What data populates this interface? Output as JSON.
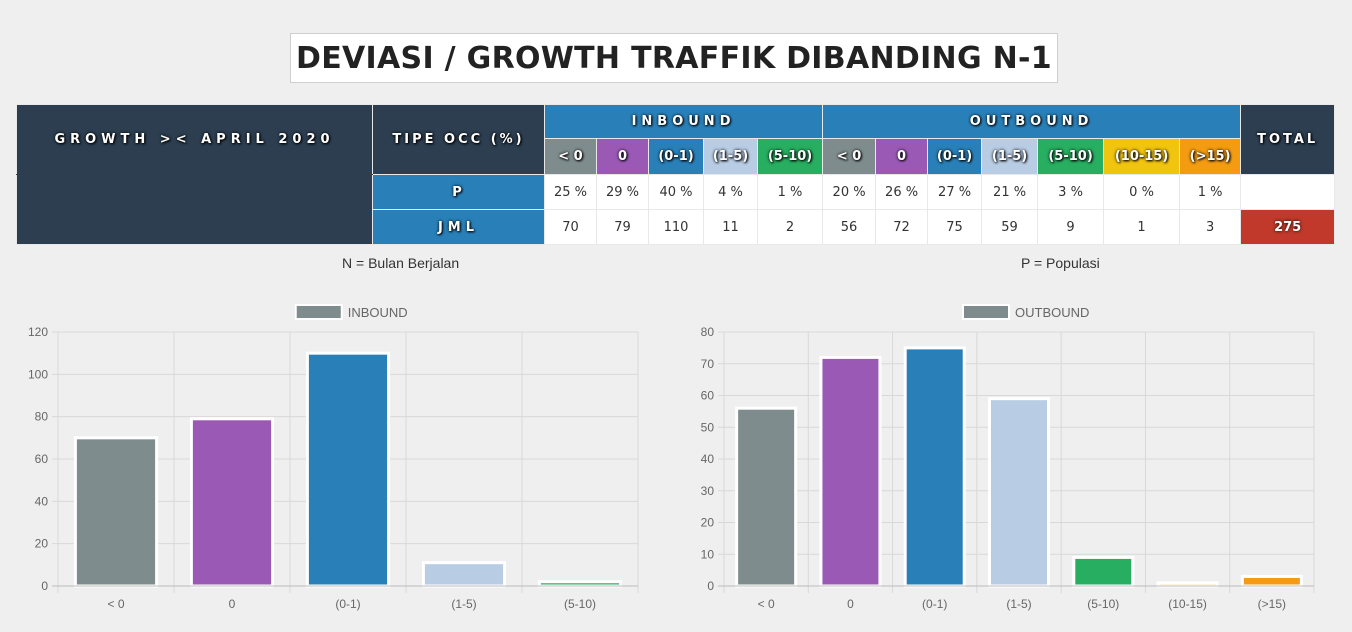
{
  "title": "DEVIASI / GROWTH TRAFFIK DIBANDING N-1",
  "table": {
    "growth_label": "GROWTH >< APRIL 2020",
    "tipe_label": "TIPE OCC (%)",
    "inbound_label": "INBOUND",
    "outbound_label": "OUTBOUND",
    "total_label": "TOTAL",
    "p_label": "P",
    "jml_label": "JML",
    "inbound_cats": [
      "< 0",
      "0",
      "(0-1)",
      "(1-5)",
      "(5-10)"
    ],
    "outbound_cats": [
      "< 0",
      "0",
      "(0-1)",
      "(1-5)",
      "(5-10)",
      "(10-15)",
      "(>15)"
    ],
    "inbound_p": [
      "25 %",
      "29 %",
      "40 %",
      "4 %",
      "1 %"
    ],
    "outbound_p": [
      "20 %",
      "26 %",
      "27 %",
      "21 %",
      "3 %",
      "0 %",
      "1 %"
    ],
    "inbound_jml": [
      "70",
      "79",
      "110",
      "11",
      "2"
    ],
    "outbound_jml": [
      "56",
      "72",
      "75",
      "59",
      "9",
      "1",
      "3"
    ],
    "total_value": "275"
  },
  "notes": {
    "left": "N = Bulan Berjalan",
    "right": "P = Populasi"
  },
  "colors": {
    "lt0": "#7f8c8d",
    "zero": "#9b59b6",
    "r0_1": "#2980b9",
    "r1_5": "#b8cce4",
    "r5_10": "#27ae60",
    "r10_15": "#f1c40f",
    "gt15": "#f39c12"
  },
  "chart_data": [
    {
      "type": "bar",
      "legend": "INBOUND",
      "categories": [
        "< 0",
        "0",
        "(0-1)",
        "(1-5)",
        "(5-10)"
      ],
      "values": [
        70,
        79,
        110,
        11,
        2
      ],
      "colors": [
        "#7f8c8d",
        "#9b59b6",
        "#2980b9",
        "#b8cce4",
        "#27ae60"
      ],
      "ylim": [
        0,
        120
      ],
      "yticks": [
        0,
        20,
        40,
        60,
        80,
        100,
        120
      ],
      "grid": true,
      "legend_position": "top"
    },
    {
      "type": "bar",
      "legend": "OUTBOUND",
      "categories": [
        "< 0",
        "0",
        "(0-1)",
        "(1-5)",
        "(5-10)",
        "(10-15)",
        "(>15)"
      ],
      "values": [
        56,
        72,
        75,
        59,
        9,
        1,
        3
      ],
      "colors": [
        "#7f8c8d",
        "#9b59b6",
        "#2980b9",
        "#b8cce4",
        "#27ae60",
        "#f1c40f",
        "#f39c12"
      ],
      "ylim": [
        0,
        80
      ],
      "yticks": [
        0,
        10,
        20,
        30,
        40,
        50,
        60,
        70,
        80
      ],
      "grid": true,
      "legend_position": "top"
    }
  ]
}
